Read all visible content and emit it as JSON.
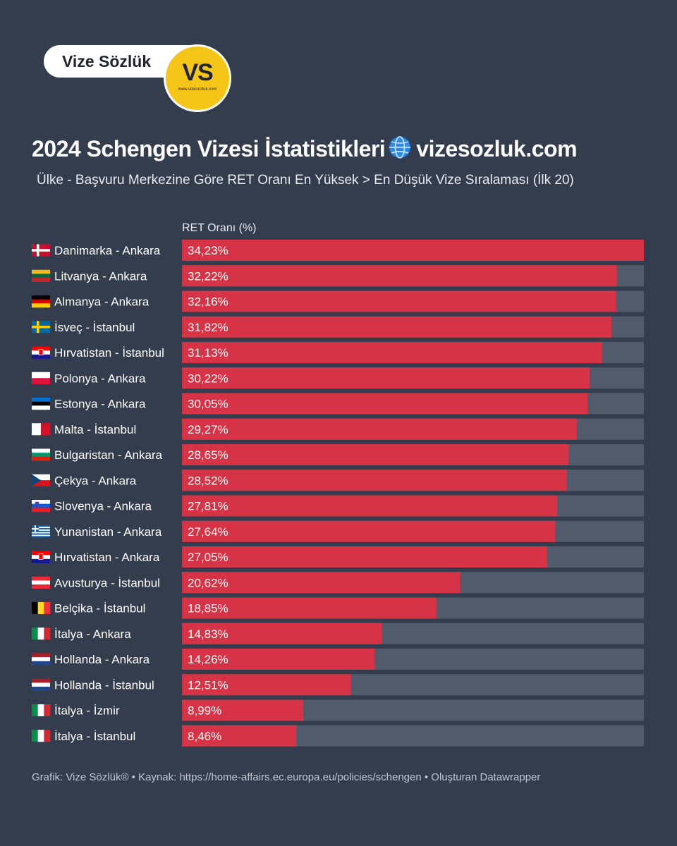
{
  "brand": {
    "name": "Vize Sözlük",
    "logo_text": "VS",
    "logo_url": "www.vizesozluk.com"
  },
  "header": {
    "title_left": "2024 Schengen Vizesi İstatistikleri",
    "title_right": "vizesozluk.com",
    "subtitle": "Ülke - Başvuru Merkezine Göre RET Oranı En Yüksek > En Düşük Vize Sıralaması (İlk 20)"
  },
  "colors": {
    "bar": "#d63446",
    "track": "#525b6b",
    "background": "#333d4d"
  },
  "chart_data": {
    "type": "bar",
    "orientation": "horizontal",
    "column_header": "RET Oranı (%)",
    "xlim": [
      0,
      34.23
    ],
    "categories": [
      "Danimarka - Ankara",
      "Litvanya - Ankara",
      "Almanya - Ankara",
      "İsveç - İstanbul",
      "Hırvatistan - İstanbul",
      "Polonya - Ankara",
      "Estonya - Ankara",
      "Malta - İstanbul",
      "Bulgaristan - Ankara",
      "Çekya - Ankara",
      "Slovenya - Ankara",
      "Yunanistan - Ankara",
      "Hırvatistan - Ankara",
      "Avusturya - İstanbul",
      "Belçika - İstanbul",
      "İtalya - Ankara",
      "Hollanda - Ankara",
      "Hollanda - İstanbul",
      "İtalya - İzmir",
      "İtalya - İstanbul"
    ],
    "values": [
      34.23,
      32.22,
      32.16,
      31.82,
      31.13,
      30.22,
      30.05,
      29.27,
      28.65,
      28.52,
      27.81,
      27.64,
      27.05,
      20.62,
      18.85,
      14.83,
      14.26,
      12.51,
      8.99,
      8.46
    ],
    "labels": [
      "34,23%",
      "32,22%",
      "32,16%",
      "31,82%",
      "31,13%",
      "30,22%",
      "30,05%",
      "29,27%",
      "28,65%",
      "28,52%",
      "27,81%",
      "27,64%",
      "27,05%",
      "20,62%",
      "18,85%",
      "14,83%",
      "14,26%",
      "12,51%",
      "8,99%",
      "8,46%"
    ],
    "flags": [
      "dk",
      "lt",
      "de",
      "se",
      "hr",
      "pl",
      "ee",
      "mt",
      "bg",
      "cz",
      "si",
      "gr",
      "hr",
      "at",
      "be",
      "it",
      "nl",
      "nl",
      "it",
      "it"
    ]
  },
  "footer": {
    "text": "Grafik: Vize Sözlük® • Kaynak: https://home-affairs.ec.europa.eu/policies/schengen • Oluşturan Datawrapper"
  }
}
